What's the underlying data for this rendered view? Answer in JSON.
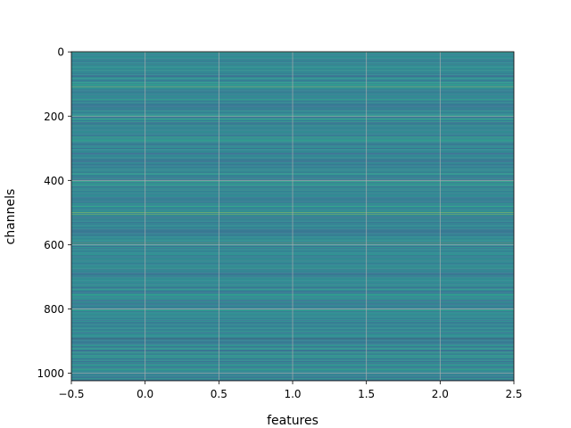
{
  "chart_data": {
    "type": "heatmap",
    "title": "",
    "xlabel": "features",
    "ylabel": "channels",
    "xlim": [
      -0.5,
      2.5
    ],
    "ylim": [
      1023.5,
      -0.5
    ],
    "y_inverted": true,
    "x_ticks": [
      -0.5,
      0.0,
      0.5,
      1.0,
      1.5,
      2.0,
      2.5
    ],
    "x_tick_labels": [
      "−0.5",
      "0.0",
      "0.5",
      "1.0",
      "1.5",
      "2.0",
      "2.5"
    ],
    "y_ticks": [
      0,
      200,
      400,
      600,
      800,
      1000
    ],
    "y_tick_labels": [
      "0",
      "200",
      "400",
      "600",
      "800",
      "1000"
    ],
    "grid": true,
    "colormap": "viridis",
    "shape": [
      1024,
      3
    ],
    "note_rows_constant_across_features": true,
    "value_range": [
      0,
      1
    ],
    "bands": [
      {
        "channel": 5,
        "value": 0.55
      },
      {
        "channel": 40,
        "value": 0.32
      },
      {
        "channel": 100,
        "value": 0.6
      },
      {
        "channel": 108,
        "value": 0.85
      },
      {
        "channel": 118,
        "value": 0.3
      },
      {
        "channel": 150,
        "value": 0.6
      },
      {
        "channel": 190,
        "value": 0.35
      },
      {
        "channel": 210,
        "value": 0.62
      },
      {
        "channel": 260,
        "value": 0.33
      },
      {
        "channel": 300,
        "value": 0.3
      },
      {
        "channel": 340,
        "value": 0.28
      },
      {
        "channel": 395,
        "value": 0.6
      },
      {
        "channel": 430,
        "value": 0.62
      },
      {
        "channel": 460,
        "value": 0.32
      },
      {
        "channel": 500,
        "value": 0.9
      },
      {
        "channel": 506,
        "value": 0.85
      },
      {
        "channel": 540,
        "value": 0.35
      },
      {
        "channel": 595,
        "value": 0.8
      },
      {
        "channel": 650,
        "value": 0.3
      },
      {
        "channel": 700,
        "value": 0.32
      },
      {
        "channel": 740,
        "value": 0.62
      },
      {
        "channel": 800,
        "value": 0.28
      },
      {
        "channel": 820,
        "value": 0.6
      },
      {
        "channel": 855,
        "value": 0.3
      },
      {
        "channel": 870,
        "value": 0.62
      },
      {
        "channel": 893,
        "value": 0.0
      },
      {
        "channel": 930,
        "value": 0.3
      },
      {
        "channel": 990,
        "value": 0.58
      }
    ]
  }
}
